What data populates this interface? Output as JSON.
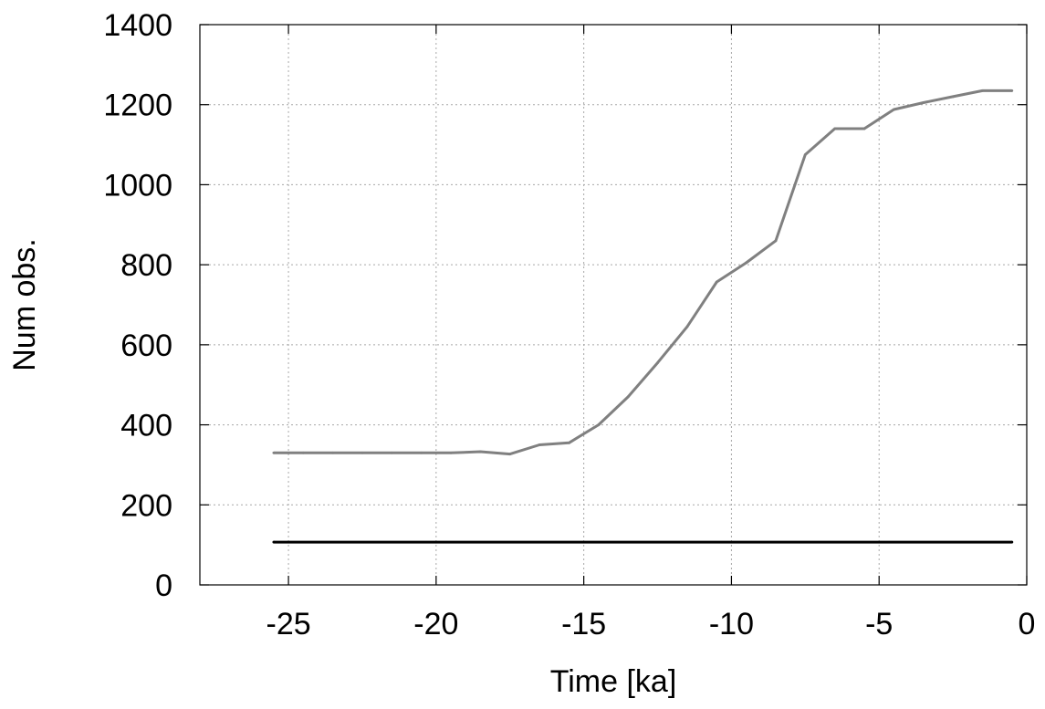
{
  "chart_data": {
    "type": "line",
    "title": "",
    "xlabel": "Time [ka]",
    "ylabel": "Num obs.",
    "xlim": [
      -28,
      0
    ],
    "ylim": [
      0,
      1400
    ],
    "xticks": [
      -25,
      -20,
      -15,
      -10,
      -5,
      0
    ],
    "yticks": [
      0,
      200,
      400,
      600,
      800,
      1000,
      1200,
      1400
    ],
    "xtick_labels": [
      "-25",
      "-20",
      "-15",
      "-10",
      "-5",
      "0"
    ],
    "ytick_labels": [
      "0",
      "200",
      "400",
      "600",
      "800",
      "1000",
      "1200",
      "1400"
    ],
    "grid": true,
    "legend": "none",
    "series": [
      {
        "color": "#808080",
        "x": [
          -25.5,
          -24.5,
          -23.5,
          -22.5,
          -21.5,
          -20.5,
          -19.5,
          -18.5,
          -17.5,
          -16.5,
          -15.5,
          -14.5,
          -13.5,
          -12.5,
          -11.5,
          -10.5,
          -9.5,
          -8.5,
          -7.5,
          -6.5,
          -5.5,
          -4.5,
          -3.5,
          -2.5,
          -1.5,
          -0.5
        ],
        "y": [
          330,
          330,
          330,
          330,
          330,
          330,
          330,
          333,
          327,
          350,
          355,
          400,
          470,
          555,
          645,
          757,
          805,
          860,
          1075,
          1140,
          1140,
          1188,
          1205,
          1220,
          1235,
          1235
        ]
      },
      {
        "color": "#000000",
        "x": [
          -25.5,
          -0.5
        ],
        "y": [
          107,
          107
        ]
      }
    ]
  }
}
